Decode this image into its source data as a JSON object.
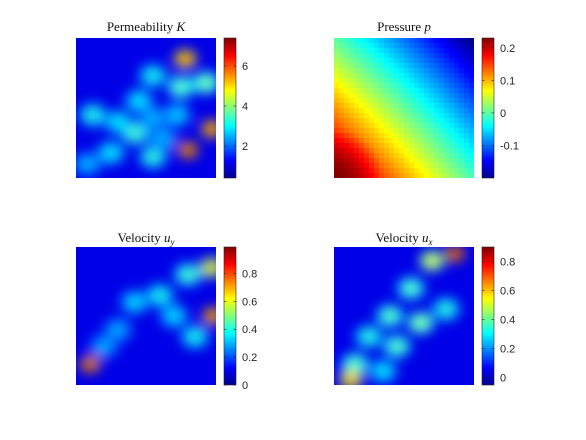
{
  "colors": {
    "colormap": "jet",
    "low": "#00008f",
    "high": "#800000",
    "background": "#ffffff"
  },
  "chart_data": [
    {
      "type": "heatmap",
      "title": "Permeability",
      "title_symbol": "K",
      "colorbar": {
        "range": [
          0.4,
          7.4
        ],
        "ticks": [
          2,
          4,
          6
        ],
        "tick_labels": [
          "2",
          "4",
          "6"
        ]
      },
      "grid": false,
      "hotspots": [
        {
          "x": 0.78,
          "y": 0.15,
          "value": 6.4
        },
        {
          "x": 0.75,
          "y": 0.35,
          "value": 3.8
        },
        {
          "x": 0.93,
          "y": 0.32,
          "value": 4.0
        },
        {
          "x": 0.55,
          "y": 0.27,
          "value": 3.2
        },
        {
          "x": 0.45,
          "y": 0.45,
          "value": 3.0
        },
        {
          "x": 0.72,
          "y": 0.55,
          "value": 2.8
        },
        {
          "x": 0.55,
          "y": 0.57,
          "value": 2.6
        },
        {
          "x": 0.97,
          "y": 0.65,
          "value": 6.8
        },
        {
          "x": 0.8,
          "y": 0.8,
          "value": 7.2
        },
        {
          "x": 0.12,
          "y": 0.55,
          "value": 3.3
        },
        {
          "x": 0.3,
          "y": 0.6,
          "value": 3.0
        },
        {
          "x": 0.42,
          "y": 0.68,
          "value": 3.6
        },
        {
          "x": 0.25,
          "y": 0.82,
          "value": 3.0
        },
        {
          "x": 0.55,
          "y": 0.85,
          "value": 3.4
        },
        {
          "x": 0.08,
          "y": 0.9,
          "value": 2.6
        },
        {
          "x": 0.62,
          "y": 0.72,
          "value": 2.6
        }
      ]
    },
    {
      "type": "heatmap",
      "title": "Pressure",
      "title_symbol": "p",
      "colorbar": {
        "range": [
          -0.2,
          0.23
        ],
        "ticks": [
          -0.1,
          0,
          0.1,
          0.2
        ],
        "tick_labels": [
          "-0.1",
          "0",
          "0.1",
          "0.2"
        ]
      },
      "grid": false,
      "description_field": "smooth gradient from bottom-left maximum to top-right minimum",
      "corner_values": {
        "bottom_left": 0.23,
        "top_left": 0.0,
        "bottom_right": -0.01,
        "top_right": -0.2
      }
    },
    {
      "type": "heatmap",
      "title": "Velocity",
      "title_symbol": "u",
      "title_subscript": "y",
      "colorbar": {
        "range": [
          0,
          0.99
        ],
        "ticks": [
          0,
          0.2,
          0.4,
          0.6,
          0.8
        ],
        "tick_labels": [
          "0",
          "0.2",
          "0.4",
          "0.6",
          "0.8"
        ]
      },
      "grid": false,
      "hotspots": [
        {
          "x": 0.1,
          "y": 0.85,
          "value": 0.97
        },
        {
          "x": 0.98,
          "y": 0.5,
          "value": 0.92
        },
        {
          "x": 0.97,
          "y": 0.15,
          "value": 0.7
        },
        {
          "x": 0.8,
          "y": 0.2,
          "value": 0.45
        },
        {
          "x": 0.6,
          "y": 0.35,
          "value": 0.4
        },
        {
          "x": 0.42,
          "y": 0.4,
          "value": 0.35
        },
        {
          "x": 0.7,
          "y": 0.5,
          "value": 0.35
        },
        {
          "x": 0.3,
          "y": 0.6,
          "value": 0.3
        },
        {
          "x": 0.85,
          "y": 0.65,
          "value": 0.4
        },
        {
          "x": 0.2,
          "y": 0.72,
          "value": 0.3
        }
      ]
    },
    {
      "type": "heatmap",
      "title": "Velocity",
      "title_symbol": "u",
      "title_subscript": "x",
      "colorbar": {
        "range": [
          -0.05,
          0.9
        ],
        "ticks": [
          0,
          0.2,
          0.4,
          0.6,
          0.8
        ],
        "tick_labels": [
          "0",
          "0.2",
          "0.4",
          "0.6",
          "0.8"
        ]
      },
      "grid": false,
      "hotspots": [
        {
          "x": 0.86,
          "y": 0.05,
          "value": 0.9
        },
        {
          "x": 0.7,
          "y": 0.1,
          "value": 0.55
        },
        {
          "x": 0.55,
          "y": 0.3,
          "value": 0.4
        },
        {
          "x": 0.4,
          "y": 0.5,
          "value": 0.4
        },
        {
          "x": 0.62,
          "y": 0.55,
          "value": 0.45
        },
        {
          "x": 0.25,
          "y": 0.65,
          "value": 0.35
        },
        {
          "x": 0.45,
          "y": 0.72,
          "value": 0.4
        },
        {
          "x": 0.15,
          "y": 0.85,
          "value": 0.4
        },
        {
          "x": 0.12,
          "y": 0.96,
          "value": 0.7
        },
        {
          "x": 0.35,
          "y": 0.9,
          "value": 0.3
        },
        {
          "x": 0.8,
          "y": 0.45,
          "value": 0.35
        }
      ]
    }
  ]
}
